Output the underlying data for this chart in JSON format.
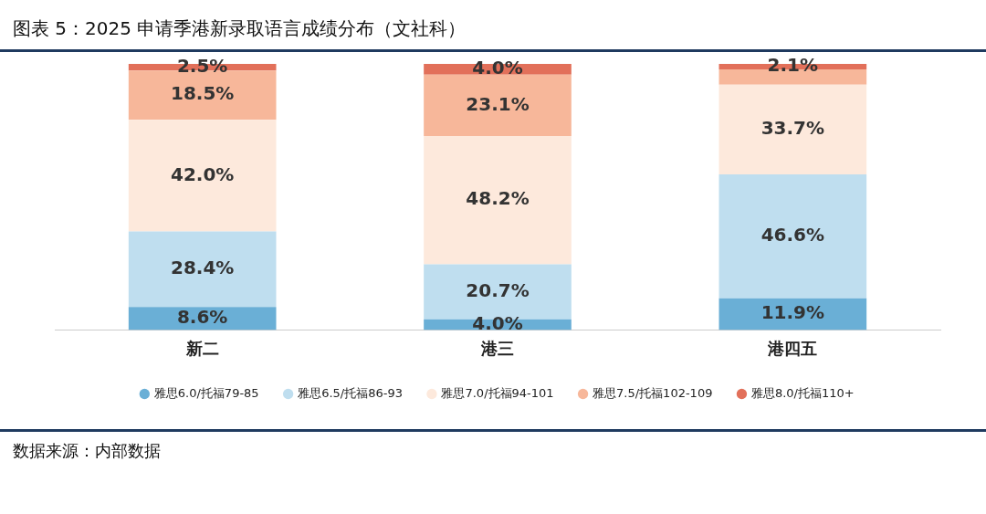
{
  "chart_data": {
    "type": "bar",
    "title": "图表 5：2025 申请季港新录取语言成绩分布（文社科）",
    "annotations": [
      "数据来源：内部数据"
    ],
    "categories": [
      "新二",
      "港三",
      "港四五"
    ],
    "stacked": true,
    "ylim": [
      0,
      100
    ],
    "tick_labels": "x",
    "legend": "bottom",
    "marker": "circle",
    "series": [
      {
        "name": "雅思6.0/托福79-85",
        "color": "#6aafd6",
        "values": [
          8.6,
          4.0,
          11.9
        ],
        "value_labels": [
          "8.6%",
          "4.0%",
          "11.9%"
        ]
      },
      {
        "name": "雅思6.5/托福86-93",
        "color": "#bfdeef",
        "values": [
          28.4,
          20.7,
          46.6
        ],
        "value_labels": [
          "28.4%",
          "20.7%",
          "46.6%"
        ]
      },
      {
        "name": "雅思7.0/托福94-101",
        "color": "#fde9dc",
        "values": [
          42.0,
          48.2,
          33.7
        ],
        "value_labels": [
          "42.0%",
          "48.2%",
          "33.7%"
        ]
      },
      {
        "name": "雅思7.5/托福102-109",
        "color": "#f7b79a",
        "values": [
          18.5,
          23.1,
          5.7
        ],
        "value_labels": [
          "18.5%",
          "23.1%",
          null
        ]
      },
      {
        "name": "雅思8.0/托福110+",
        "color": "#e2705a",
        "values": [
          2.5,
          4.0,
          2.1
        ],
        "value_labels": [
          "2.5%",
          "4.0%",
          "2.1%"
        ]
      }
    ]
  }
}
